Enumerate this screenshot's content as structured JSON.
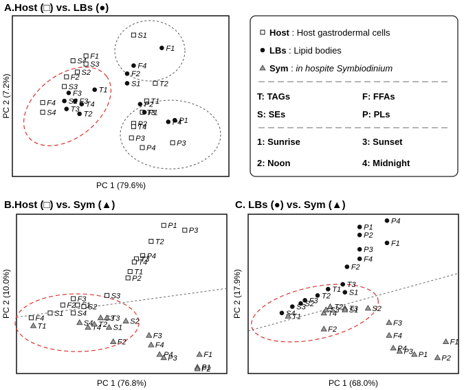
{
  "chart_data": [
    {
      "type": "scatter",
      "title": "A.Host (□) vs. LBs (●)",
      "xlabel": "PC 1 (79.6%)",
      "ylabel": "PC 2 (7.2%)",
      "xlim": [
        0,
        100
      ],
      "ylim": [
        0,
        100
      ],
      "series": [
        {
          "name": "Host",
          "marker": "open-square",
          "points": [
            {
              "label": "S1",
              "x": 56,
              "y": 88
            },
            {
              "label": "F1",
              "x": 34,
              "y": 75
            },
            {
              "label": "S4",
              "x": 28,
              "y": 72
            },
            {
              "label": "S3",
              "x": 34,
              "y": 70
            },
            {
              "label": "S2",
              "x": 30,
              "y": 65
            },
            {
              "label": "F2",
              "x": 25,
              "y": 62
            },
            {
              "label": "S3",
              "x": 24,
              "y": 56
            },
            {
              "label": "F4",
              "x": 14,
              "y": 46
            },
            {
              "label": "S4",
              "x": 14,
              "y": 40
            },
            {
              "label": "T1",
              "x": 62,
              "y": 47
            },
            {
              "label": "T2",
              "x": 66,
              "y": 58
            },
            {
              "label": "T3",
              "x": 60,
              "y": 40
            },
            {
              "label": "P2",
              "x": 56,
              "y": 33
            },
            {
              "label": "T4",
              "x": 56,
              "y": 31
            },
            {
              "label": "P3",
              "x": 55,
              "y": 24
            },
            {
              "label": "P4",
              "x": 60,
              "y": 18
            },
            {
              "label": "P3",
              "x": 74,
              "y": 21
            }
          ]
        },
        {
          "name": "LBs",
          "marker": "filled-circle",
          "points": [
            {
              "label": "F1",
              "x": 69,
              "y": 80
            },
            {
              "label": "F4",
              "x": 56,
              "y": 69
            },
            {
              "label": "F2",
              "x": 53,
              "y": 64
            },
            {
              "label": "S1",
              "x": 53,
              "y": 58
            },
            {
              "label": "T1",
              "x": 38,
              "y": 54
            },
            {
              "label": "F3",
              "x": 26,
              "y": 52
            },
            {
              "label": "S2",
              "x": 24,
              "y": 47
            },
            {
              "label": "F3",
              "x": 29,
              "y": 47
            },
            {
              "label": "T4",
              "x": 32,
              "y": 45
            },
            {
              "label": "T3",
              "x": 25,
              "y": 42
            },
            {
              "label": "T2",
              "x": 31,
              "y": 39
            },
            {
              "label": "P2",
              "x": 59,
              "y": 45
            },
            {
              "label": "P1",
              "x": 61,
              "y": 40
            },
            {
              "label": "P4",
              "x": 72,
              "y": 34
            },
            {
              "label": "P1",
              "x": 75,
              "y": 35
            }
          ]
        }
      ]
    },
    {
      "type": "scatter",
      "title": "B.Host (□) vs. Sym (▲)",
      "xlabel": "PC 1 (76.8%)",
      "ylabel": "PC 2 (10.0%)",
      "xlim": [
        0,
        100
      ],
      "ylim": [
        0,
        100
      ],
      "series": [
        {
          "name": "Host",
          "marker": "open-square",
          "points": [
            {
              "label": "P1",
              "x": 70,
              "y": 93
            },
            {
              "label": "P3",
              "x": 80,
              "y": 90
            },
            {
              "label": "T2",
              "x": 64,
              "y": 83
            },
            {
              "label": "P4",
              "x": 60,
              "y": 74
            },
            {
              "label": "T3",
              "x": 57,
              "y": 72
            },
            {
              "label": "T4",
              "x": 56,
              "y": 70
            },
            {
              "label": "T1",
              "x": 54,
              "y": 64
            },
            {
              "label": "P2",
              "x": 53,
              "y": 60
            },
            {
              "label": "S3",
              "x": 43,
              "y": 49
            },
            {
              "label": "F3",
              "x": 27,
              "y": 47
            },
            {
              "label": "F2",
              "x": 22,
              "y": 43
            },
            {
              "label": "F1",
              "x": 29,
              "y": 43
            },
            {
              "label": "S2",
              "x": 32,
              "y": 42
            },
            {
              "label": "S1",
              "x": 16,
              "y": 38
            },
            {
              "label": "S4",
              "x": 27,
              "y": 38
            },
            {
              "label": "F4",
              "x": 7,
              "y": 35
            }
          ]
        },
        {
          "name": "Sym",
          "marker": "grey-triangle",
          "points": [
            {
              "label": "T1",
              "x": 8,
              "y": 30
            },
            {
              "label": "S4",
              "x": 30,
              "y": 32
            },
            {
              "label": "S3",
              "x": 40,
              "y": 35
            },
            {
              "label": "T3",
              "x": 43,
              "y": 35
            },
            {
              "label": "T4",
              "x": 34,
              "y": 29
            },
            {
              "label": "T2",
              "x": 37,
              "y": 31
            },
            {
              "label": "S1",
              "x": 44,
              "y": 29
            },
            {
              "label": "S2",
              "x": 52,
              "y": 33
            },
            {
              "label": "F2",
              "x": 46,
              "y": 20
            },
            {
              "label": "F3",
              "x": 63,
              "y": 24
            },
            {
              "label": "F4",
              "x": 64,
              "y": 18
            },
            {
              "label": "P4",
              "x": 68,
              "y": 12
            },
            {
              "label": "P3",
              "x": 70,
              "y": 10
            },
            {
              "label": "F1",
              "x": 87,
              "y": 12
            },
            {
              "label": "P1",
              "x": 86,
              "y": 4
            },
            {
              "label": "P2",
              "x": 86,
              "y": 3
            }
          ]
        }
      ]
    },
    {
      "type": "scatter",
      "title": "C. LBs (●) vs. Sym (▲)",
      "xlabel": "PC 1 (68.0%)",
      "ylabel": "PC 2 (17.9%)",
      "xlim": [
        0,
        100
      ],
      "ylim": [
        0,
        100
      ],
      "series": [
        {
          "name": "LBs",
          "marker": "filled-circle",
          "points": [
            {
              "label": "P4",
              "x": 66,
              "y": 96
            },
            {
              "label": "P1",
              "x": 53,
              "y": 92
            },
            {
              "label": "P2",
              "x": 53,
              "y": 87
            },
            {
              "label": "F1",
              "x": 66,
              "y": 82
            },
            {
              "label": "P3",
              "x": 53,
              "y": 78
            },
            {
              "label": "F4",
              "x": 53,
              "y": 72
            },
            {
              "label": "F2",
              "x": 47,
              "y": 67
            },
            {
              "label": "T3",
              "x": 45,
              "y": 56
            },
            {
              "label": "S1",
              "x": 46,
              "y": 51
            },
            {
              "label": "T1",
              "x": 38,
              "y": 53
            },
            {
              "label": "T2",
              "x": 33,
              "y": 49
            },
            {
              "label": "F3",
              "x": 27,
              "y": 46
            },
            {
              "label": "S2",
              "x": 25,
              "y": 44
            },
            {
              "label": "S3",
              "x": 21,
              "y": 42
            },
            {
              "label": "S4",
              "x": 16,
              "y": 38
            }
          ]
        },
        {
          "name": "Sym",
          "marker": "grey-triangle",
          "points": [
            {
              "label": "T1",
              "x": 19,
              "y": 36
            },
            {
              "label": "T4",
              "x": 36,
              "y": 38
            },
            {
              "label": "T2",
              "x": 39,
              "y": 42
            },
            {
              "label": "T3",
              "x": 46,
              "y": 41
            },
            {
              "label": "S3",
              "x": 37,
              "y": 40
            },
            {
              "label": "S1",
              "x": 46,
              "y": 40
            },
            {
              "label": "F2",
              "x": 36,
              "y": 28
            },
            {
              "label": "S2",
              "x": 57,
              "y": 41
            },
            {
              "label": "F3",
              "x": 67,
              "y": 32
            },
            {
              "label": "F4",
              "x": 67,
              "y": 24
            },
            {
              "label": "P4",
              "x": 69,
              "y": 16
            },
            {
              "label": "P3",
              "x": 72,
              "y": 14
            },
            {
              "label": "P1",
              "x": 79,
              "y": 12
            },
            {
              "label": "F1",
              "x": 94,
              "y": 20
            },
            {
              "label": "P2",
              "x": 90,
              "y": 10
            }
          ]
        }
      ]
    }
  ],
  "legend": {
    "rows": [
      {
        "marker": "open-square",
        "key": "Host",
        "sep": " : ",
        "text": "Host gastrodermal cells",
        "italic": false
      },
      {
        "marker": "filled-circle",
        "key": "LBs",
        "sep": " : ",
        "text": "Lipid bodies",
        "italic": false
      },
      {
        "marker": "grey-triangle",
        "key": "Sym",
        "sep": " : ",
        "text": "in hospite Symbiodinium",
        "italic": true
      }
    ],
    "codes": [
      {
        "left": "T: TAGs",
        "right": "F: FFAs"
      },
      {
        "left": "S: SEs",
        "right": "P: PLs"
      },
      {
        "left": "1: Sunrise",
        "right": "3: Sunset"
      },
      {
        "left": "2: Noon",
        "right": "4: Midnight"
      }
    ]
  },
  "colors": {
    "cluster_red": "#d9302c",
    "cluster_grey": "#555555",
    "triangle_fill": "#9a9a9a"
  }
}
